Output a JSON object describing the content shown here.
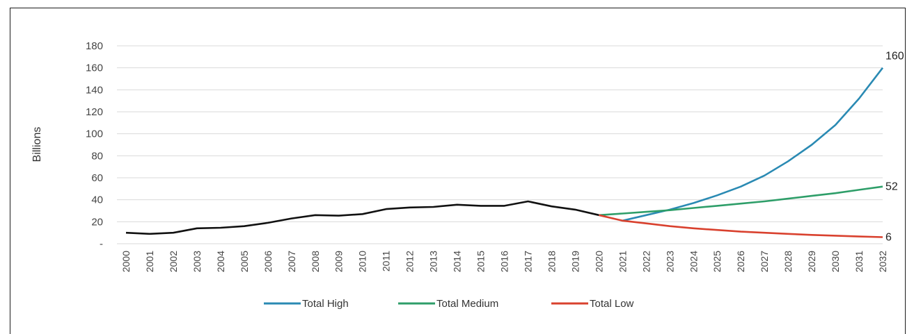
{
  "chart_data": {
    "type": "line",
    "title": "",
    "xlabel": "",
    "ylabel": "Billions",
    "ylim": [
      0,
      180
    ],
    "yticks": [
      0,
      20,
      40,
      60,
      80,
      100,
      120,
      140,
      160,
      180
    ],
    "ytick_labels": [
      "-",
      "20",
      "40",
      "60",
      "80",
      "100",
      "120",
      "140",
      "160",
      "180"
    ],
    "grid": "horizontal",
    "legend_position": "bottom",
    "x": [
      "2000",
      "2001",
      "2002",
      "2003",
      "2004",
      "2005",
      "2006",
      "2007",
      "2008",
      "2009",
      "2010",
      "2011",
      "2012",
      "2013",
      "2014",
      "2015",
      "2016",
      "2017",
      "2018",
      "2019",
      "2020",
      "2021",
      "2022",
      "2023",
      "2024",
      "2025",
      "2026",
      "2027",
      "2028",
      "2029",
      "2030",
      "2031",
      "2032"
    ],
    "history": {
      "color": "#111111",
      "x": [
        "2000",
        "2001",
        "2002",
        "2003",
        "2004",
        "2005",
        "2006",
        "2007",
        "2008",
        "2009",
        "2010",
        "2011",
        "2012",
        "2013",
        "2014",
        "2015",
        "2016",
        "2017",
        "2018",
        "2019",
        "2020"
      ],
      "values": [
        10,
        9,
        10,
        14,
        14.5,
        16,
        19,
        23,
        26,
        25.5,
        27,
        31.5,
        33,
        33.5,
        35.5,
        34.5,
        34.5,
        38.5,
        34,
        31,
        26
      ]
    },
    "series": [
      {
        "name": "Total High",
        "color": "#2a8ab3",
        "x": [
          "2021",
          "2022",
          "2023",
          "2024",
          "2025",
          "2026",
          "2027",
          "2028",
          "2029",
          "2030",
          "2031",
          "2032"
        ],
        "values": [
          21,
          26,
          31,
          37,
          44,
          52,
          62,
          75,
          90,
          108,
          132,
          160
        ]
      },
      {
        "name": "Total Medium",
        "color": "#2e9e69",
        "x": [
          "2020",
          "2021",
          "2022",
          "2023",
          "2024",
          "2025",
          "2026",
          "2027",
          "2028",
          "2029",
          "2030",
          "2031",
          "2032"
        ],
        "values": [
          26,
          27.5,
          29,
          30.5,
          32.5,
          34.5,
          36.5,
          38.5,
          41,
          43.5,
          46,
          49,
          52
        ]
      },
      {
        "name": "Total Low",
        "color": "#d9412e",
        "x": [
          "2020",
          "2021",
          "2022",
          "2023",
          "2024",
          "2025",
          "2026",
          "2027",
          "2028",
          "2029",
          "2030",
          "2031",
          "2032"
        ],
        "values": [
          26,
          21,
          18.5,
          16,
          14,
          12.5,
          11,
          10,
          9,
          8,
          7.3,
          6.6,
          6
        ]
      }
    ],
    "end_labels": [
      "160",
      "52",
      "6"
    ]
  }
}
